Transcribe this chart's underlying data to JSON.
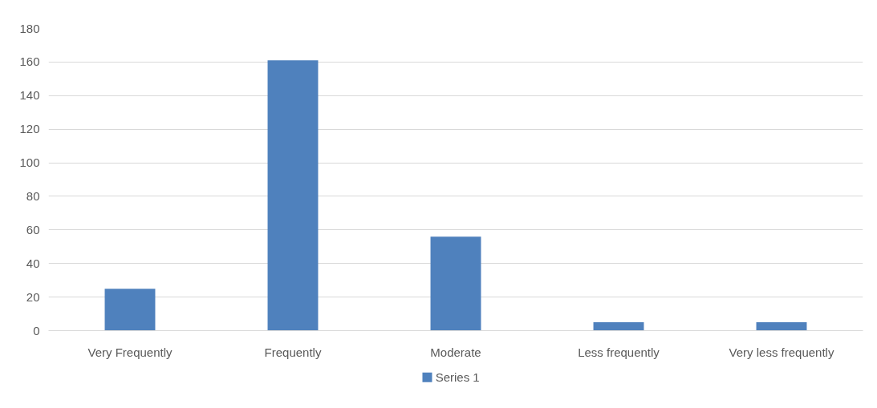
{
  "chart_data": {
    "type": "bar",
    "categories": [
      "Very Frequently",
      "Frequently",
      "Moderate",
      "Less frequently",
      "Very less frequently"
    ],
    "series": [
      {
        "name": "Series 1",
        "color": "#4f81bd",
        "values": [
          25,
          161,
          56,
          5,
          5
        ]
      }
    ],
    "ylim": [
      0,
      180
    ],
    "yticks": [
      0,
      20,
      40,
      60,
      80,
      100,
      120,
      140,
      160,
      180
    ],
    "grid": "y",
    "legend": "bottom"
  }
}
